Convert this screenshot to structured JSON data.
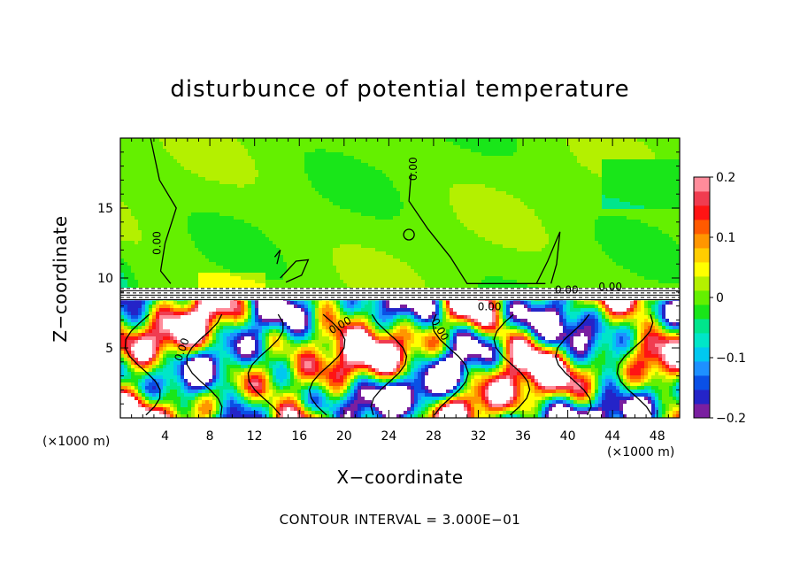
{
  "chart_data": {
    "type": "heatmap",
    "title": "disturbunce of potential temperature",
    "xlabel": "X−coordinate",
    "ylabel": "Z−coordinate",
    "x_unit_left": "(×1000 m)",
    "x_unit_right": "(×1000 m)",
    "xlim": [
      0,
      50
    ],
    "ylim": [
      0,
      20
    ],
    "x_ticks": [
      4,
      8,
      12,
      16,
      20,
      24,
      28,
      32,
      36,
      40,
      44,
      48
    ],
    "x_tick_labels": [
      "4",
      "8",
      "12",
      "16",
      "20",
      "24",
      "28",
      "32",
      "36",
      "40",
      "44",
      "48"
    ],
    "y_ticks": [
      5,
      10,
      15
    ],
    "y_tick_labels": [
      "5",
      "10",
      "15"
    ],
    "colorbar": {
      "range": [
        -0.2,
        0.2
      ],
      "tick_values": [
        0.2,
        0.1,
        0,
        -0.1,
        -0.2
      ],
      "tick_labels": [
        "0.2",
        "0.1",
        "0",
        "−0.1",
        "−0.2"
      ],
      "colors": [
        "#7a1fa0",
        "#2424c8",
        "#0a50e6",
        "#1e90ff",
        "#00c8f0",
        "#00e6c8",
        "#00e68c",
        "#19e619",
        "#64f000",
        "#b4f000",
        "#ffff00",
        "#ffcd00",
        "#ff9600",
        "#ff5a00",
        "#ff1414",
        "#f03c50",
        "#ff8c9b"
      ]
    },
    "contour_label": "0.00",
    "contour_interval_text": "CONTOUR INTERVAL = 3.000E−01",
    "interface_height": 8.6,
    "upper_layer_value": 0.0,
    "lower_layer_amplitude": 0.2
  }
}
